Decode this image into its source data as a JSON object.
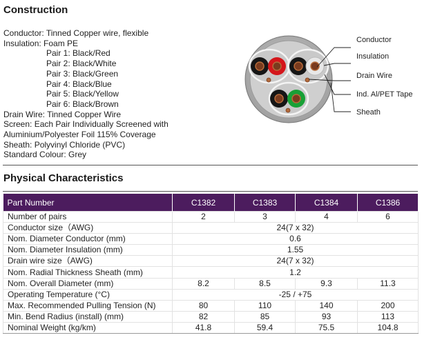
{
  "construction": {
    "heading": "Construction",
    "lines": [
      "Conductor: Tinned Copper wire, flexible",
      "Insulation: Foam PE",
      "Pair 1: Black/Red",
      "Pair 2: Black/White",
      "Pair 3: Black/Green",
      "Pair 4: Black/Blue",
      "Pair 5: Black/Yellow",
      "Pair 6: Black/Brown",
      "Drain Wire: Tinned Copper Wire",
      "Screen: Each Pair Individually Screened with",
      "Aluminium/Polyester Foil 115% Coverage",
      "Sheath: Polyvinyl Chloride (PVC)",
      "Standard Colour: Grey"
    ]
  },
  "diagram": {
    "labels": [
      "Conductor",
      "Insulation",
      "Drain Wire",
      "Ind. Al/PET Tape",
      "Sheath"
    ]
  },
  "physical": {
    "heading": "Physical Characteristics",
    "columns": [
      "Part Number",
      "C1382",
      "C1383",
      "C1384",
      "C1386"
    ],
    "rows": [
      [
        "Number of pairs",
        "2",
        "3",
        "4",
        "6"
      ],
      [
        "Conductor size（AWG)",
        "24(7 x 32)"
      ],
      [
        "Nom. Diameter Conductor (mm)",
        "0.6"
      ],
      [
        "Nom. Diameter Insulation (mm)",
        "1.55"
      ],
      [
        "Drain wire size（AWG)",
        "24(7 x 32)"
      ],
      [
        "Nom. Radial Thickness Sheath (mm)",
        "1.2"
      ],
      [
        "Nom. Overall Diameter (mm)",
        "8.2",
        "8.5",
        "9.3",
        "11.3"
      ],
      [
        "Operating Temperature (°C)",
        "-25 / +75"
      ],
      [
        "Max. Recommended Pulling Tension (N)",
        "80",
        "110",
        "140",
        "200"
      ],
      [
        "Min. Bend Radius (install) (mm)",
        "82",
        "85",
        "93",
        "113"
      ],
      [
        "Nominal Weight (kg/km)",
        "41.8",
        "59.4",
        "75.5",
        "104.8"
      ]
    ]
  }
}
